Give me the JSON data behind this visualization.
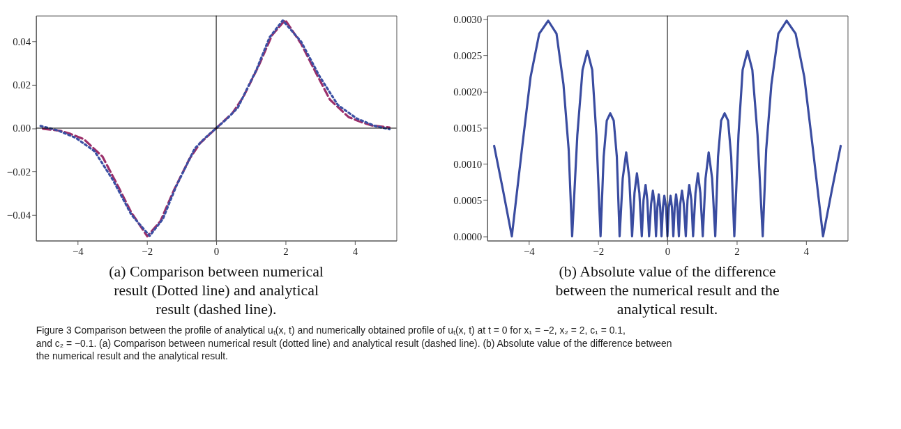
{
  "chart_data": [
    {
      "type": "line",
      "title": "(a) Comparison between numerical result (Dotted line) and analytical result (dashed line).",
      "xlim": [
        -5.2,
        5.2
      ],
      "xticks": [
        -4,
        -2,
        0,
        2,
        4
      ],
      "ylim": [
        -0.052,
        0.052
      ],
      "yticks": [
        {
          "value": -0.04,
          "label": "−0.04"
        },
        {
          "value": -0.02,
          "label": "−0.02"
        },
        {
          "value": 0,
          "label": "0.00"
        },
        {
          "value": 0.02,
          "label": "0.02"
        },
        {
          "value": 0.04,
          "label": "0.04"
        }
      ],
      "grid": false,
      "legend": false,
      "ref_lines": [
        {
          "axis": "x",
          "value": 0,
          "color": "#000000"
        },
        {
          "axis": "y",
          "value": 0,
          "color": "#000000"
        }
      ],
      "series": [
        {
          "color": "#9b2f6a",
          "line_style": "dashed",
          "x": [
            -5,
            -4.5,
            -4.2,
            -3.82,
            -3.28,
            -2.83,
            -2.45,
            -1.99,
            -1.61,
            -1.23,
            -0.78,
            -0.47,
            0,
            0.47,
            0.78,
            1.23,
            1.61,
            1.99,
            2.45,
            2.83,
            3.28,
            3.82,
            4.2,
            4.5,
            5
          ],
          "values": [
            -0.0003,
            -0.0012,
            -0.0027,
            -0.0051,
            -0.0132,
            -0.027,
            -0.039,
            -0.05,
            -0.043,
            -0.029,
            -0.0144,
            -0.007,
            0,
            0.007,
            0.0144,
            0.029,
            0.043,
            0.05,
            0.039,
            0.027,
            0.0132,
            0.0051,
            0.0027,
            0.0012,
            0.0003
          ]
        },
        {
          "color": "#3a4fa3",
          "line_style": "dotted",
          "x": [
            -5.07,
            -4.58,
            -4.05,
            -3.51,
            -2.98,
            -2.45,
            -1.92,
            -1.54,
            -1.16,
            -0.62,
            -0.32,
            0,
            0.32,
            0.62,
            1.16,
            1.54,
            1.92,
            2.45,
            2.98,
            3.51,
            4.05,
            4.58,
            5.0
          ],
          "values": [
            0.001,
            -0.001,
            -0.0045,
            -0.0107,
            -0.024,
            -0.04,
            -0.0498,
            -0.042,
            -0.027,
            -0.0094,
            -0.0045,
            0,
            0.0045,
            0.0094,
            0.027,
            0.042,
            0.0498,
            0.04,
            0.024,
            0.0107,
            0.0045,
            0.001,
            -0.0005
          ]
        }
      ],
      "annotations": [
        "Figure 3 Comparison between the profile of analytical uₜ(x, t) and numerically obtained profile of uₜ(x, t) at t = 0 for x₁ = −2, x₂ = 2, c₁ = 0.1, and c₂ = −0.1. (a) Comparison between numerical result (dotted line) and analytical result (dashed line). (b) Absolute value of the difference between the numerical result and the analytical result."
      ]
    },
    {
      "type": "line",
      "title": "(b) Absolute value of the difference between the numerical result and the analytical result.",
      "xlim": [
        -5.2,
        5.2
      ],
      "xticks": [
        -4,
        -2,
        0,
        2,
        4
      ],
      "ylim": [
        -6e-05,
        0.00305
      ],
      "yticks": [
        {
          "value": 0,
          "label": "0.0000"
        },
        {
          "value": 0.0005,
          "label": "0.0005"
        },
        {
          "value": 0.001,
          "label": "0.0010"
        },
        {
          "value": 0.0015,
          "label": "0.0015"
        },
        {
          "value": 0.002,
          "label": "0.0020"
        },
        {
          "value": 0.0025,
          "label": "0.0025"
        },
        {
          "value": 0.003,
          "label": "0.0030"
        }
      ],
      "grid": false,
      "legend": false,
      "ref_lines": [
        {
          "axis": "x",
          "value": 0,
          "color": "#000000"
        }
      ],
      "series": [
        {
          "color": "#3a4ca0",
          "line_style": "solid",
          "x": [
            -5.0,
            -4.75,
            -4.49,
            -4.2,
            -3.95,
            -3.7,
            -3.44,
            -3.2,
            -3.0,
            -2.85,
            -2.75,
            -2.6,
            -2.45,
            -2.31,
            -2.17,
            -2.05,
            -1.93,
            -1.84,
            -1.75,
            -1.65,
            -1.55,
            -1.46,
            -1.38,
            -1.29,
            -1.19,
            -1.1,
            -1.02,
            -0.95,
            -0.88,
            -0.81,
            -0.74,
            -0.69,
            -0.63,
            -0.58,
            -0.53,
            -0.47,
            -0.42,
            -0.37,
            -0.33,
            -0.29,
            -0.25,
            -0.21,
            -0.17,
            -0.13,
            -0.09,
            -0.04,
            0,
            0.04,
            0.09,
            0.13,
            0.17,
            0.21,
            0.25,
            0.29,
            0.33,
            0.37,
            0.42,
            0.47,
            0.53,
            0.58,
            0.63,
            0.69,
            0.74,
            0.81,
            0.88,
            0.95,
            1.02,
            1.1,
            1.19,
            1.29,
            1.38,
            1.46,
            1.55,
            1.65,
            1.75,
            1.84,
            1.93,
            2.05,
            2.17,
            2.31,
            2.45,
            2.6,
            2.75,
            2.85,
            3.0,
            3.2,
            3.44,
            3.7,
            3.95,
            4.2,
            4.49,
            4.75,
            5.0
          ],
          "values": [
            0.00125,
            0.00065,
            0,
            0.0012,
            0.0022,
            0.0028,
            0.00298,
            0.0028,
            0.0021,
            0.0012,
            0,
            0.0014,
            0.0023,
            0.00256,
            0.0023,
            0.0014,
            0,
            0.0011,
            0.0016,
            0.0017,
            0.0016,
            0.0011,
            0,
            0.0008,
            0.00116,
            0.0008,
            0,
            0.0006,
            0.00087,
            0.0006,
            0,
            0.0005,
            0.00071,
            0.0005,
            0,
            0.00045,
            0.00063,
            0.00045,
            0,
            0.0004,
            0.00058,
            0.0004,
            0,
            0.0004,
            0.00056,
            0.0004,
            0,
            0.0004,
            0.00056,
            0.0004,
            0,
            0.0004,
            0.00058,
            0.0004,
            0,
            0.00045,
            0.00063,
            0.00045,
            0,
            0.0005,
            0.00071,
            0.0005,
            0,
            0.0006,
            0.00087,
            0.0006,
            0,
            0.0008,
            0.00116,
            0.0008,
            0,
            0.0011,
            0.0016,
            0.0017,
            0.0016,
            0.0011,
            0,
            0.0014,
            0.0023,
            0.00256,
            0.0023,
            0.0014,
            0,
            0.0012,
            0.0021,
            0.0028,
            0.00298,
            0.0028,
            0.0022,
            0.0012,
            0,
            0.00065,
            0.00125
          ]
        }
      ]
    }
  ]
}
